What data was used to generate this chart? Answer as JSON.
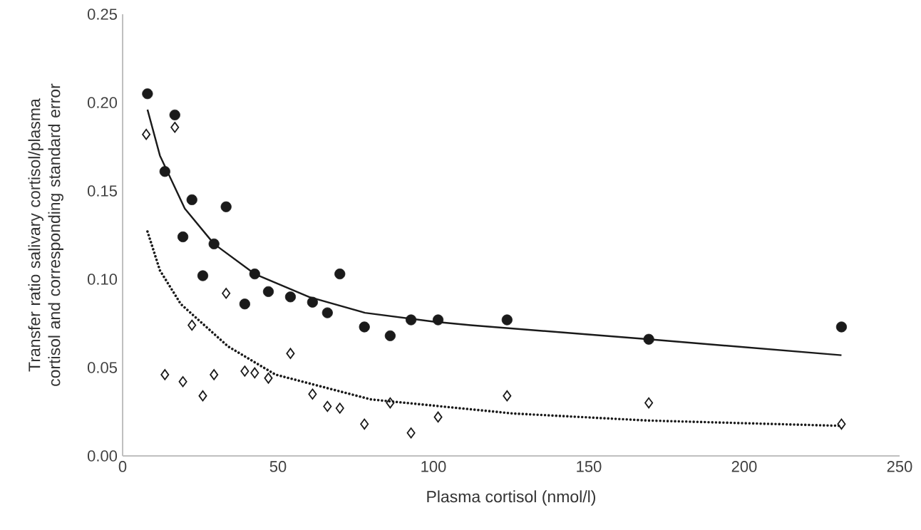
{
  "chart_data": {
    "type": "scatter",
    "xlabel": "Plasma cortisol (nmol/l)",
    "ylabel": "Transfer ratio salivary cortisol/plasma cortisol and corresponding standard error",
    "xlim": [
      0,
      250
    ],
    "xticks": [
      0,
      50,
      100,
      150,
      200,
      250
    ],
    "ylim": [
      0,
      0.25
    ],
    "yticks": [
      {
        "value": 0,
        "label": "0.00"
      },
      {
        "value": 0.05,
        "label": "0.05"
      },
      {
        "value": 0.1,
        "label": "0.10"
      },
      {
        "value": 0.15,
        "label": "0.15"
      },
      {
        "value": 0.2,
        "label": "0.20"
      },
      {
        "value": 0.25,
        "label": "0.25"
      }
    ],
    "grid": false,
    "series": [
      {
        "marker": "circle",
        "color": "#1a1a1a",
        "x": [
          8.0,
          13.6,
          16.8,
          19.4,
          22.3,
          25.8,
          29.4,
          33.3,
          39.3,
          42.5,
          46.9,
          54.0,
          61.1,
          65.9,
          69.9,
          77.8,
          86.1,
          92.8,
          101.5,
          123.7,
          169.3,
          231.3
        ],
        "values": [
          0.205,
          0.161,
          0.193,
          0.124,
          0.145,
          0.102,
          0.12,
          0.141,
          0.086,
          0.103,
          0.093,
          0.09,
          0.087,
          0.081,
          0.103,
          0.073,
          0.068,
          0.077,
          0.077,
          0.077,
          0.066,
          0.073
        ]
      },
      {
        "marker": "diamond",
        "color": "#1a1a1a",
        "x": [
          7.6,
          16.8,
          13.6,
          19.4,
          22.3,
          25.8,
          29.4,
          33.3,
          39.3,
          42.5,
          46.9,
          54.0,
          61.1,
          65.9,
          69.9,
          77.8,
          86.1,
          92.8,
          101.5,
          123.7,
          169.3,
          231.3
        ],
        "values": [
          0.182,
          0.186,
          0.046,
          0.042,
          0.074,
          0.034,
          0.046,
          0.092,
          0.048,
          0.047,
          0.044,
          0.058,
          0.035,
          0.028,
          0.027,
          0.018,
          0.03,
          0.013,
          0.022,
          0.034,
          0.03,
          0.018
        ]
      },
      {
        "type": "line",
        "marker": "none",
        "line_style": "solid",
        "color": "#1a1a1a",
        "x": [
          8,
          12,
          20,
          29.4,
          42.5,
          60,
          78,
          100,
          112,
          169.3,
          231.3
        ],
        "values": [
          0.196,
          0.17,
          0.14,
          0.12,
          0.103,
          0.09,
          0.081,
          0.076,
          0.074,
          0.066,
          0.057
        ]
      },
      {
        "type": "line",
        "marker": "none",
        "line_style": "dotted",
        "color": "#1a1a1a",
        "x": [
          8,
          12,
          18.7,
          33.9,
          49.2,
          79.8,
          125.7,
          169.3,
          231.3
        ],
        "values": [
          0.127,
          0.105,
          0.086,
          0.062,
          0.046,
          0.032,
          0.024,
          0.02,
          0.017
        ]
      }
    ]
  }
}
